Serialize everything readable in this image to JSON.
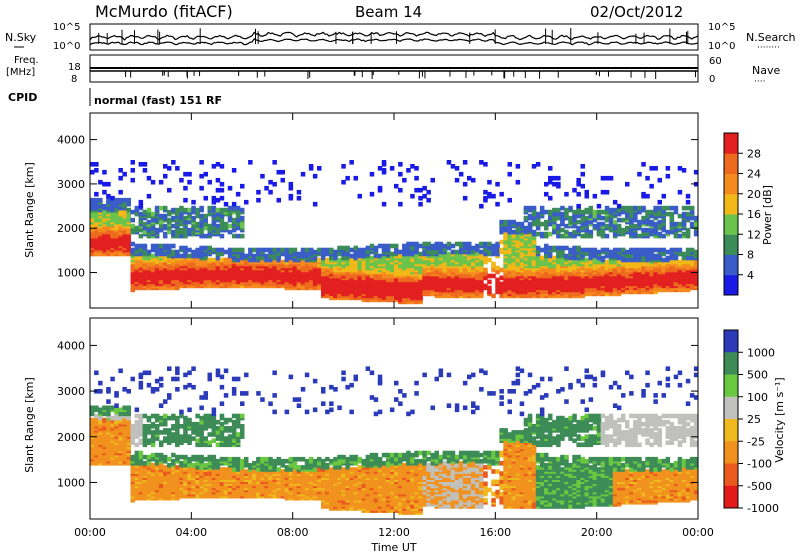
{
  "header": {
    "station": "McMurdo (fitACF)",
    "beam": "Beam 14",
    "date": "02/Oct/2012"
  },
  "summary_panels": {
    "nsky_label": "N.Sky",
    "nsearch_label": "N.Search",
    "nsearch_marker": "········",
    "count_axis_top": "10^5",
    "count_axis_bottom": "10^0",
    "freq_label_1": "Freq.",
    "freq_label_2": "[MHz]",
    "freq_ticks": [
      "8",
      "18"
    ],
    "nave_label": "Nave",
    "nave_marker": "····",
    "nave_ticks": [
      "0",
      "60"
    ],
    "cpid_label": "CPID",
    "cpid_value": "normal (fast) 151 RF"
  },
  "chart_data": [
    {
      "type": "heatmap",
      "name": "power",
      "ylabel": "Slant Range [km]",
      "colorbar_label": "Power [dB]",
      "colorbar_ticks": [
        "4",
        "8",
        "12",
        "16",
        "20",
        "24",
        "28"
      ],
      "colorbar_colors": [
        "#1a1ae6",
        "#3a5cc8",
        "#3c8c5a",
        "#6ac44c",
        "#f2b818",
        "#f58a1e",
        "#ee6a1e",
        "#e32020"
      ],
      "yticks": [
        "1000",
        "2000",
        "3000",
        "4000"
      ],
      "ylim": [
        200,
        4600
      ],
      "xlim": [
        "00:00",
        "24:00"
      ],
      "features": {
        "main_echo_band_km": [
          600,
          1300
        ],
        "peak_power_time": "12:00",
        "upper_scatter_km": [
          1800,
          2600
        ]
      }
    },
    {
      "type": "heatmap",
      "name": "velocity",
      "ylabel": "Slant Range [km]",
      "colorbar_label": "Velocity [m s⁻¹]",
      "colorbar_ticks": [
        "1000",
        "500",
        "100",
        "25",
        "-25",
        "-100",
        "-500",
        "-1000"
      ],
      "colorbar_colors": [
        "#2a3ab8",
        "#3d8c58",
        "#6ac840",
        "#c0c0bc",
        "#eeb81e",
        "#f2921e",
        "#ea5a1e",
        "#e21a1a"
      ],
      "yticks": [
        "1000",
        "2000",
        "3000",
        "4000"
      ],
      "ylim": [
        200,
        4600
      ],
      "xlim": [
        "00:00",
        "24:00"
      ],
      "xticks": [
        "00:00",
        "04:00",
        "08:00",
        "12:00",
        "16:00",
        "20:00",
        "00:00"
      ],
      "xlabel": "Time UT"
    }
  ]
}
